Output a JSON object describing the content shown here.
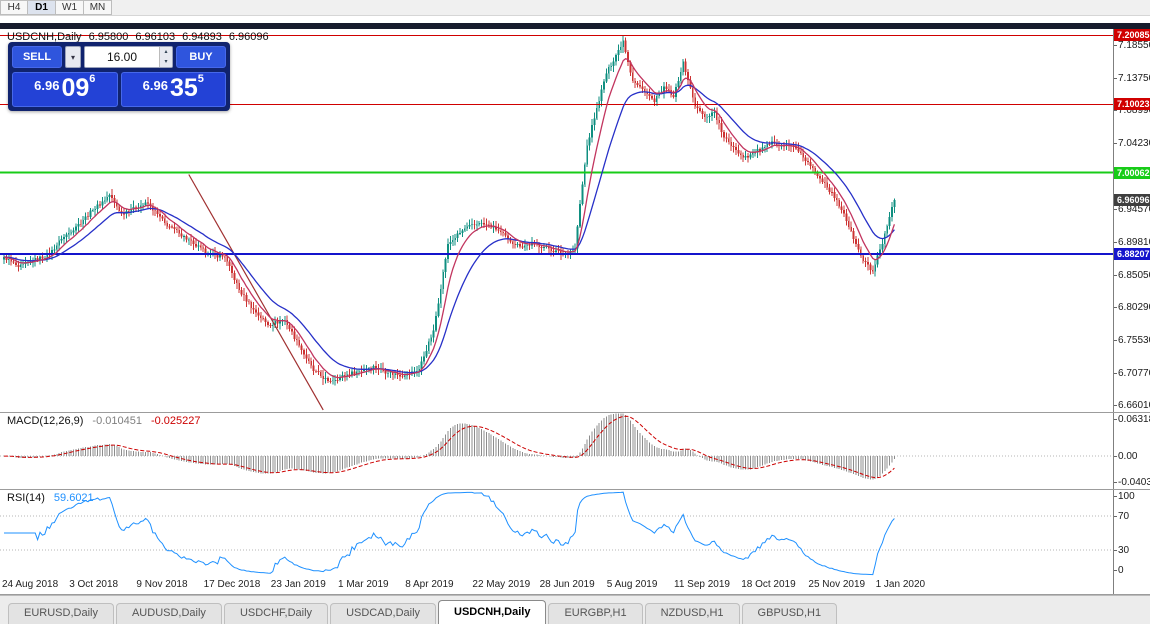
{
  "colors": {
    "up": "#0f8f80",
    "down": "#cc3333",
    "ma_fast": "#c2355f",
    "ma_slow": "#2730c8",
    "trendline": "#a03030",
    "macd_hist": "#8c8c8c",
    "macd_signal": "#cc0000",
    "rsi_line": "#1e90ff",
    "grid_dotted": "#b4b4b4",
    "current_tag_bg": "#3f3f3f"
  },
  "period_tabs": [
    {
      "label": "H4",
      "active": false
    },
    {
      "label": "D1",
      "active": true
    },
    {
      "label": "W1",
      "active": false
    },
    {
      "label": "MN",
      "active": false
    }
  ],
  "chart_header": {
    "symbol_period": "USDCNH,Daily",
    "open": "6.95800",
    "high": "6.96103",
    "low": "6.94893",
    "close": "6.96096"
  },
  "trade_panel": {
    "sell_label": "SELL",
    "buy_label": "BUY",
    "volume": "16.00",
    "sell_price_big": "6.96",
    "sell_price_pips": "09",
    "sell_price_sup": "6",
    "buy_price_big": "6.96",
    "buy_price_pips": "35",
    "buy_price_sup": "5"
  },
  "hlines": [
    {
      "price": 7.20085,
      "label": "7.20085",
      "color": "#d00000",
      "width": 1
    },
    {
      "price": 7.10023,
      "label": "7.10023",
      "color": "#d00000",
      "width": 1
    },
    {
      "price": 7.00062,
      "label": "7.00062",
      "color": "#18cc18",
      "width": 2
    },
    {
      "price": 6.88207,
      "label": "6.88207",
      "color": "#1414cc",
      "width": 2
    }
  ],
  "current_price": {
    "value": 6.96096,
    "label": "6.96096"
  },
  "price_axis_ticks": [
    "7.18550",
    "7.13750",
    "7.08990",
    "7.04230",
    "6.99470",
    "6.94570",
    "6.89810",
    "6.85050",
    "6.80290",
    "6.75530",
    "6.70770",
    "6.66010"
  ],
  "macd": {
    "label": "MACD(12,26,9)",
    "value_main": "-0.010451",
    "value_signal": "-0.025227",
    "axis": [
      "0.063184",
      "0.00",
      "-0.040355"
    ]
  },
  "rsi": {
    "label": "RSI(14)",
    "value": "59.6021",
    "axis": [
      "100",
      "70",
      "30",
      "0"
    ],
    "levels": [
      70,
      30
    ]
  },
  "date_axis": [
    "24 Aug 2018",
    "3 Oct 2018",
    "9 Nov 2018",
    "17 Dec 2018",
    "23 Jan 2019",
    "1 Mar 2019",
    "8 Apr 2019",
    "22 May 2019",
    "28 Jun 2019",
    "5 Aug 2019",
    "11 Sep 2019",
    "18 Oct 2019",
    "25 Nov 2019",
    "1 Jan 2020"
  ],
  "bottom_tabs": [
    {
      "label": "EURUSD,Daily",
      "active": false
    },
    {
      "label": "AUDUSD,Daily",
      "active": false
    },
    {
      "label": "USDCHF,Daily",
      "active": false
    },
    {
      "label": "USDCAD,Daily",
      "active": false
    },
    {
      "label": "USDCNH,Daily",
      "active": true
    },
    {
      "label": "EURGBP,H1",
      "active": false
    },
    {
      "label": "NZDUSD,H1",
      "active": false
    },
    {
      "label": "GBPUSD,H1",
      "active": false
    }
  ],
  "chart_data": {
    "type": "candlestick",
    "symbol": "USDCNH",
    "timeframe": "Daily",
    "n_candles": 372,
    "main_range": {
      "min": 6.652,
      "max": 7.21
    },
    "macd_range": {
      "min": -0.052,
      "max": 0.068
    },
    "rsi_range": {
      "min": 0,
      "max": 100
    },
    "anchors": [
      [
        0,
        6.878
      ],
      [
        6,
        6.863
      ],
      [
        12,
        6.872
      ],
      [
        19,
        6.882
      ],
      [
        24,
        6.904
      ],
      [
        30,
        6.922
      ],
      [
        37,
        6.946
      ],
      [
        44,
        6.968
      ],
      [
        49,
        6.941
      ],
      [
        54,
        6.951
      ],
      [
        60,
        6.956
      ],
      [
        67,
        6.927
      ],
      [
        73,
        6.912
      ],
      [
        79,
        6.897
      ],
      [
        85,
        6.882
      ],
      [
        92,
        6.878
      ],
      [
        98,
        6.83
      ],
      [
        104,
        6.801
      ],
      [
        110,
        6.779
      ],
      [
        117,
        6.786
      ],
      [
        123,
        6.749
      ],
      [
        129,
        6.712
      ],
      [
        135,
        6.697
      ],
      [
        142,
        6.705
      ],
      [
        148,
        6.712
      ],
      [
        154,
        6.719
      ],
      [
        160,
        6.709
      ],
      [
        167,
        6.705
      ],
      [
        173,
        6.715
      ],
      [
        179,
        6.771
      ],
      [
        185,
        6.897
      ],
      [
        192,
        6.919
      ],
      [
        198,
        6.927
      ],
      [
        204,
        6.922
      ],
      [
        210,
        6.904
      ],
      [
        215,
        6.893
      ],
      [
        221,
        6.897
      ],
      [
        227,
        6.89
      ],
      [
        233,
        6.882
      ],
      [
        238,
        6.89
      ],
      [
        240,
        6.955
      ],
      [
        243,
        7.04
      ],
      [
        247,
        7.095
      ],
      [
        251,
        7.145
      ],
      [
        255,
        7.172
      ],
      [
        258,
        7.193
      ],
      [
        262,
        7.134
      ],
      [
        267,
        7.119
      ],
      [
        271,
        7.104
      ],
      [
        275,
        7.126
      ],
      [
        279,
        7.111
      ],
      [
        283,
        7.163
      ],
      [
        288,
        7.097
      ],
      [
        292,
        7.082
      ],
      [
        296,
        7.089
      ],
      [
        300,
        7.052
      ],
      [
        304,
        7.038
      ],
      [
        308,
        7.023
      ],
      [
        313,
        7.03
      ],
      [
        317,
        7.038
      ],
      [
        321,
        7.045
      ],
      [
        325,
        7.04
      ],
      [
        329,
        7.038
      ],
      [
        333,
        7.023
      ],
      [
        338,
        7.001
      ],
      [
        342,
        6.986
      ],
      [
        346,
        6.964
      ],
      [
        350,
        6.941
      ],
      [
        354,
        6.904
      ],
      [
        358,
        6.872
      ],
      [
        362,
        6.857
      ],
      [
        366,
        6.897
      ],
      [
        371,
        6.961
      ]
    ],
    "noise_amp": 0.003,
    "wick_base": 0.002,
    "wick_rand": 0.007,
    "ma_fast_period": 8,
    "ma_slow_period": 21,
    "macd_params": [
      12,
      26,
      9
    ],
    "rsi_period": 14,
    "trendline": {
      "i1": 77,
      "p1": 6.998,
      "i2": 133,
      "p2": 6.655
    },
    "date_tick_indices": [
      0,
      28,
      56,
      84,
      112,
      140,
      168,
      196,
      224,
      252,
      280,
      308,
      336,
      364
    ]
  }
}
